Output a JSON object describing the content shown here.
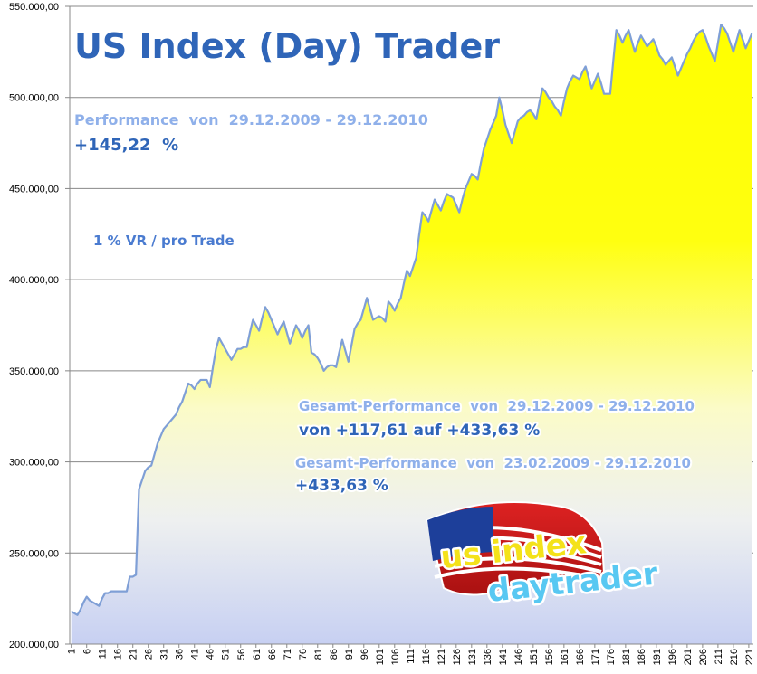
{
  "chart_data": {
    "type": "area",
    "title": "US Index (Day) Trader",
    "annotations": [
      "Performance  von  29.12.2009 - 29.12.2010",
      "+145,22  %",
      "1 % VR / pro Trade",
      "Gesamt-Performance  von  29.12.2009 - 29.12.2010",
      "von +117,61 auf +433,63 %",
      "Gesamt-Performance  von  23.02.2009 - 29.12.2010",
      "+433,63 %"
    ],
    "logo_text": [
      "us index",
      "daytrader"
    ],
    "categories": [
      1,
      null,
      null,
      null,
      null,
      6,
      null,
      null,
      null,
      null,
      11,
      null,
      null,
      null,
      null,
      16,
      null,
      null,
      null,
      null,
      21,
      null,
      null,
      null,
      null,
      26,
      null,
      null,
      null,
      null,
      31,
      null,
      null,
      null,
      null,
      36,
      null,
      null,
      null,
      null,
      41,
      null,
      null,
      null,
      null,
      46,
      null,
      null,
      null,
      null,
      51,
      null,
      null,
      null,
      null,
      56,
      null,
      null,
      null,
      null,
      61,
      null,
      null,
      null,
      null,
      66,
      null,
      null,
      null,
      null,
      71,
      null,
      null,
      null,
      null,
      76,
      null,
      null,
      null,
      null,
      81,
      null,
      null,
      null,
      null,
      86,
      null,
      null,
      null,
      null,
      91,
      null,
      null,
      null,
      null,
      96,
      null,
      null,
      null,
      null,
      101,
      null,
      null,
      null,
      null,
      106,
      null,
      null,
      null,
      null,
      111,
      null,
      null,
      null,
      null,
      116,
      null,
      null,
      null,
      null,
      121,
      null,
      null,
      null,
      null,
      126,
      null,
      null,
      null,
      null,
      131,
      null,
      null,
      null,
      null,
      136,
      null,
      null,
      null,
      null,
      141,
      null,
      null,
      null,
      null,
      146,
      null,
      null,
      null,
      null,
      151,
      null,
      null,
      null,
      null,
      156,
      null,
      null,
      null,
      null,
      161,
      null,
      null,
      null,
      null,
      166,
      null,
      null,
      null,
      null,
      171,
      null,
      null,
      null,
      null,
      176,
      null,
      null,
      null,
      null,
      181,
      null,
      null,
      null,
      null,
      186,
      null,
      null,
      null,
      null,
      191,
      null,
      null,
      null,
      null,
      196,
      null,
      null,
      null,
      null,
      201,
      null,
      null,
      null,
      null,
      206,
      null,
      null,
      null,
      null,
      211,
      null,
      null,
      null,
      null,
      216,
      null,
      null,
      null,
      null,
      221,
      null
    ],
    "values": [
      218000,
      217000,
      216000,
      219000,
      223000,
      226000,
      224000,
      223000,
      222000,
      221000,
      225000,
      228000,
      228000,
      229000,
      229000,
      229000,
      229000,
      229000,
      229000,
      237000,
      237000,
      238000,
      285000,
      290000,
      295000,
      297000,
      298000,
      304000,
      310000,
      314000,
      318000,
      320000,
      322000,
      324000,
      326000,
      330000,
      333000,
      338000,
      343000,
      342000,
      340000,
      343000,
      345000,
      345000,
      345000,
      341000,
      352000,
      362000,
      368000,
      365000,
      362000,
      359000,
      356000,
      359000,
      362000,
      362000,
      363000,
      363000,
      371000,
      378000,
      375000,
      372000,
      379000,
      385000,
      382000,
      378000,
      374000,
      370000,
      374000,
      377000,
      371000,
      365000,
      370000,
      375000,
      372000,
      368000,
      372000,
      375000,
      360000,
      359000,
      357000,
      354000,
      350000,
      352000,
      353000,
      353000,
      352000,
      360000,
      367000,
      361000,
      355000,
      364000,
      373000,
      376000,
      378000,
      384000,
      390000,
      384000,
      378000,
      379000,
      380000,
      379000,
      377000,
      388000,
      386000,
      383000,
      387000,
      390000,
      398000,
      405000,
      402000,
      407000,
      412000,
      425000,
      437000,
      435000,
      432000,
      438000,
      444000,
      441000,
      438000,
      443000,
      447000,
      446000,
      445000,
      441000,
      437000,
      444000,
      450000,
      454000,
      458000,
      457000,
      455000,
      464000,
      472000,
      477000,
      482000,
      486000,
      490000,
      500000,
      493000,
      485000,
      480000,
      475000,
      481000,
      487000,
      489000,
      490000,
      492000,
      493000,
      491000,
      488000,
      497000,
      505000,
      503000,
      500000,
      498000,
      495000,
      493000,
      490000,
      498000,
      505000,
      509000,
      512000,
      511000,
      510000,
      514000,
      517000,
      511000,
      505000,
      509000,
      513000,
      508000,
      502000,
      502000,
      502000,
      520000,
      537000,
      534000,
      530000,
      534000,
      537000,
      531000,
      525000,
      530000,
      534000,
      531000,
      528000,
      530000,
      532000,
      528000,
      523000,
      521000,
      518000,
      520000,
      522000,
      517000,
      512000,
      516000,
      520000,
      524000,
      527000,
      531000,
      534000,
      536000,
      537000,
      533000,
      528000,
      524000,
      520000,
      530000,
      540000,
      538000,
      535000,
      530000,
      525000,
      531000,
      537000,
      532000,
      527000,
      531000,
      535000
    ],
    "color": "#7f9fd6",
    "ylim": [
      200000,
      550000
    ],
    "yticks": [
      {
        "value": 200000,
        "label": "200.000,00"
      },
      {
        "value": 250000,
        "label": "250.000,00"
      },
      {
        "value": 300000,
        "label": "300.000,00"
      },
      {
        "value": 350000,
        "label": "350.000,00"
      },
      {
        "value": 400000,
        "label": "400.000,00"
      },
      {
        "value": 450000,
        "label": "450.000,00"
      },
      {
        "value": 500000,
        "label": "500.000,00"
      },
      {
        "value": 550000,
        "label": "550.000,00"
      }
    ],
    "grid": true
  }
}
